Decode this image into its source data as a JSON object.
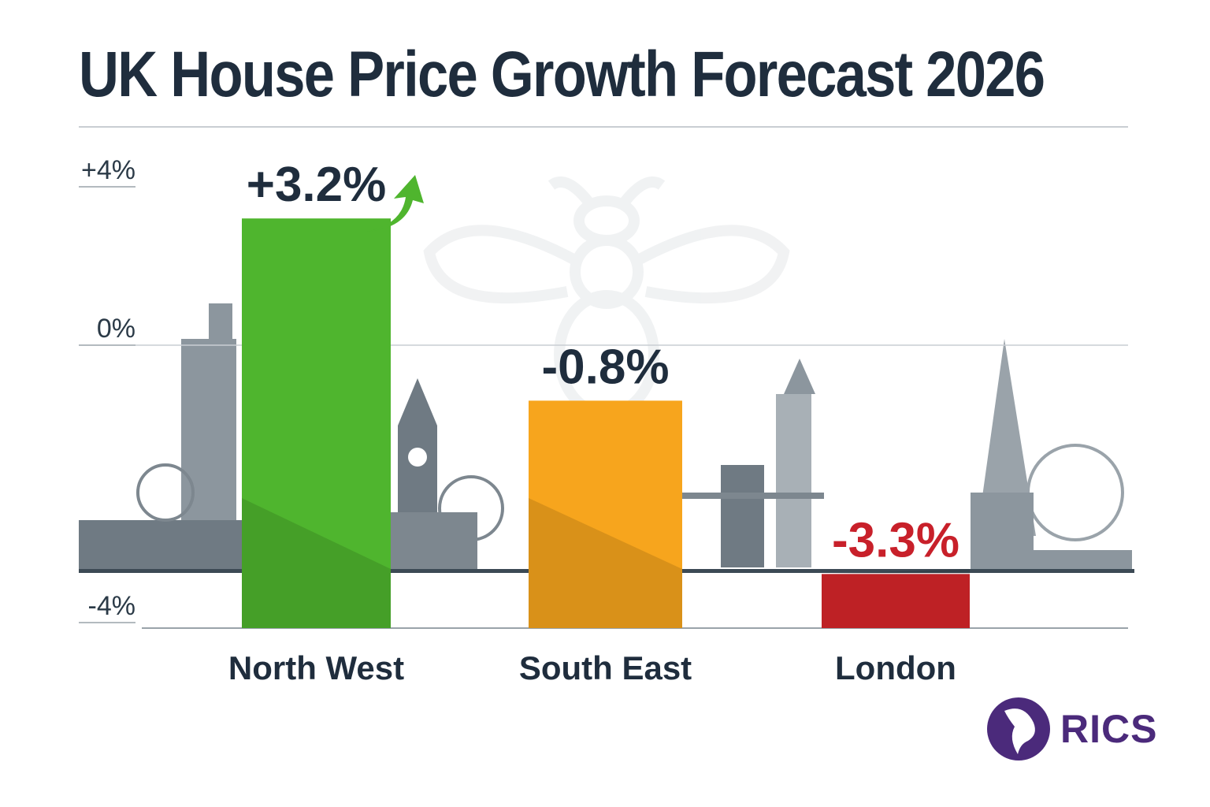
{
  "chart_data": {
    "type": "bar",
    "title": "UK House Price Growth Forecast 2026",
    "categories": [
      "North West",
      "South East",
      "London"
    ],
    "values": [
      3.2,
      -0.8,
      -3.3
    ],
    "value_labels": [
      "+3.2%",
      "-0.8%",
      "-3.3%"
    ],
    "y_ticks": [
      4,
      0,
      -4
    ],
    "y_tick_labels": [
      "+4%",
      "0%",
      "-4%"
    ],
    "ylim": [
      -4,
      4
    ],
    "grid": true,
    "colors": {
      "North West": "#4fb52e",
      "South East": "#f7a51d",
      "London": "#d9262b"
    },
    "label_colors": {
      "North West": "#1f2d3d",
      "South East": "#1f2d3d",
      "London": "#c8202a"
    },
    "annotation_icon": "green-up-arrow-icon"
  },
  "logo": {
    "text": "RICS",
    "color": "#4b2a7b",
    "icon": "lion-icon"
  }
}
